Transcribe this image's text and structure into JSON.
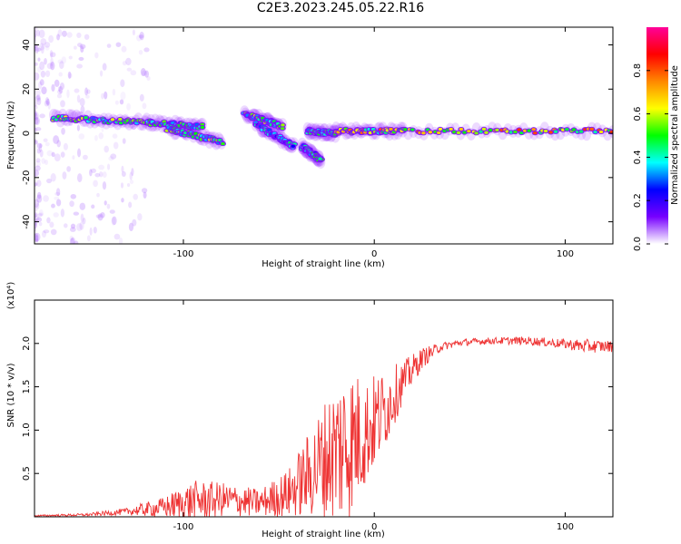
{
  "title": "C2E3.2023.245.05.22.R16",
  "chart_data": [
    {
      "type": "heatmap",
      "xlabel": "Height of straight line (km)",
      "ylabel": "Frequency (Hz)",
      "xlim": [
        -178,
        125
      ],
      "ylim": [
        -50,
        48
      ],
      "xticks": [
        -100,
        0,
        100
      ],
      "yticks": [
        40,
        20,
        0,
        -20,
        -40
      ],
      "colorbar": {
        "label": "Normalized spectral amplitude",
        "range": [
          0,
          1
        ],
        "ticks": [
          "0.0",
          "0.2",
          "0.4",
          "0.6",
          "0.8"
        ],
        "colormap": [
          "#ffffff",
          "#7700ff",
          "#0000ff",
          "#00ffff",
          "#00ff00",
          "#ffff00",
          "#ff8800",
          "#ff0000",
          "#ff0099"
        ]
      },
      "ridge_segments": [
        {
          "x": [
            -168,
            -120
          ],
          "y": [
            7,
            5
          ],
          "amplitude": 0.55
        },
        {
          "x": [
            -120,
            -90
          ],
          "y": [
            5,
            3
          ],
          "amplitude": 0.5
        },
        {
          "x": [
            -108,
            -80
          ],
          "y": [
            2,
            -4
          ],
          "amplitude": 0.55
        },
        {
          "x": [
            -68,
            -48
          ],
          "y": [
            9,
            3
          ],
          "amplitude": 0.55
        },
        {
          "x": [
            -62,
            -42
          ],
          "y": [
            4,
            -6
          ],
          "amplitude": 0.4
        },
        {
          "x": [
            -38,
            -28
          ],
          "y": [
            -6,
            -12
          ],
          "amplitude": 0.45
        },
        {
          "x": [
            -35,
            -20
          ],
          "y": [
            1,
            0
          ],
          "amplitude": 0.5
        },
        {
          "x": [
            -20,
            15
          ],
          "y": [
            1,
            1
          ],
          "amplitude": 0.7
        },
        {
          "x": [
            15,
            125
          ],
          "y": [
            1,
            1
          ],
          "amplitude": 0.75
        }
      ]
    },
    {
      "type": "line",
      "xlabel": "Height of straight line (km)",
      "ylabel": "SNR (10 * v/v)",
      "yscale_label": "(x10⁴)",
      "xlim": [
        -178,
        125
      ],
      "ylim": [
        0,
        2.5
      ],
      "xticks": [
        -100,
        0,
        100
      ],
      "yticks": [
        0.5,
        1.0,
        1.5,
        2.0
      ],
      "ytick_labels": [
        "0.5",
        "1.0",
        "1.5",
        "2.0"
      ],
      "color": "#ee3333",
      "envelope": {
        "x": [
          -178,
          -150,
          -130,
          -110,
          -95,
          -80,
          -60,
          -45,
          -35,
          -25,
          -15,
          -5,
          5,
          15,
          25,
          35,
          45,
          60,
          80,
          100,
          110,
          125
        ],
        "base": [
          0.01,
          0.02,
          0.05,
          0.08,
          0.12,
          0.15,
          0.12,
          0.2,
          0.35,
          0.5,
          0.6,
          0.8,
          1.1,
          1.5,
          1.8,
          1.95,
          2.0,
          2.02,
          2.02,
          1.98,
          1.95,
          1.95
        ],
        "amp": [
          0.01,
          0.02,
          0.05,
          0.15,
          0.3,
          0.25,
          0.2,
          0.35,
          0.6,
          0.9,
          1.2,
          0.8,
          0.6,
          0.3,
          0.15,
          0.06,
          0.05,
          0.05,
          0.06,
          0.07,
          0.1,
          0.08
        ]
      }
    }
  ]
}
